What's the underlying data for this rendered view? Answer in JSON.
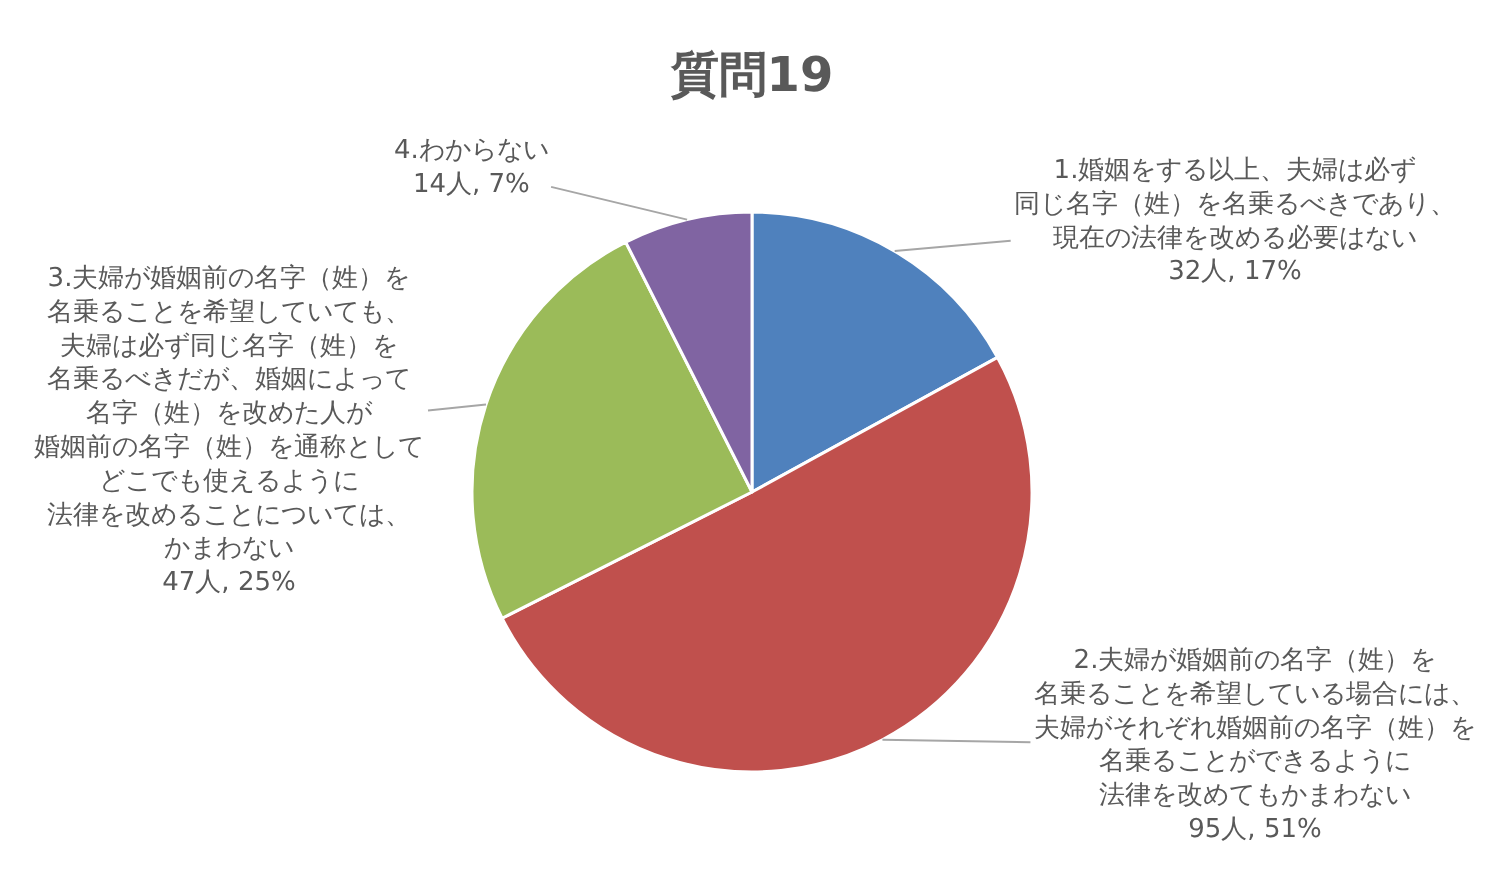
{
  "chart_data": {
    "type": "pie",
    "title": "質問19",
    "categories": [
      "1.婚姻をする以上、夫婦は必ず同じ名字（姓）を名乗るべきであり、現在の法律を改める必要はない",
      "2.夫婦が婚姻前の名字（姓）を名乗ることを希望している場合には、夫婦がそれぞれ婚姻前の名字（姓）を名乗ることができるように法律を改めてもかまわない",
      "3.夫婦が婚姻前の名字（姓）を名乗ることを希望していても、夫婦は必ず同じ名字（姓）を名乗るべきだが、婚姻によって名字（姓）を改めた人が婚姻前の名字（姓）を通称としてどこでも使えるように法律を改めることについては、かまわない",
      "4.わからない"
    ],
    "values": [
      32,
      95,
      47,
      14
    ],
    "colors": [
      "#4f81bd",
      "#c0504d",
      "#9bbb59",
      "#8064a2"
    ],
    "value_labels": [
      "32人, 17%",
      "95人, 51%",
      "47人, 25%",
      "14人, 7%"
    ],
    "legend": false
  }
}
